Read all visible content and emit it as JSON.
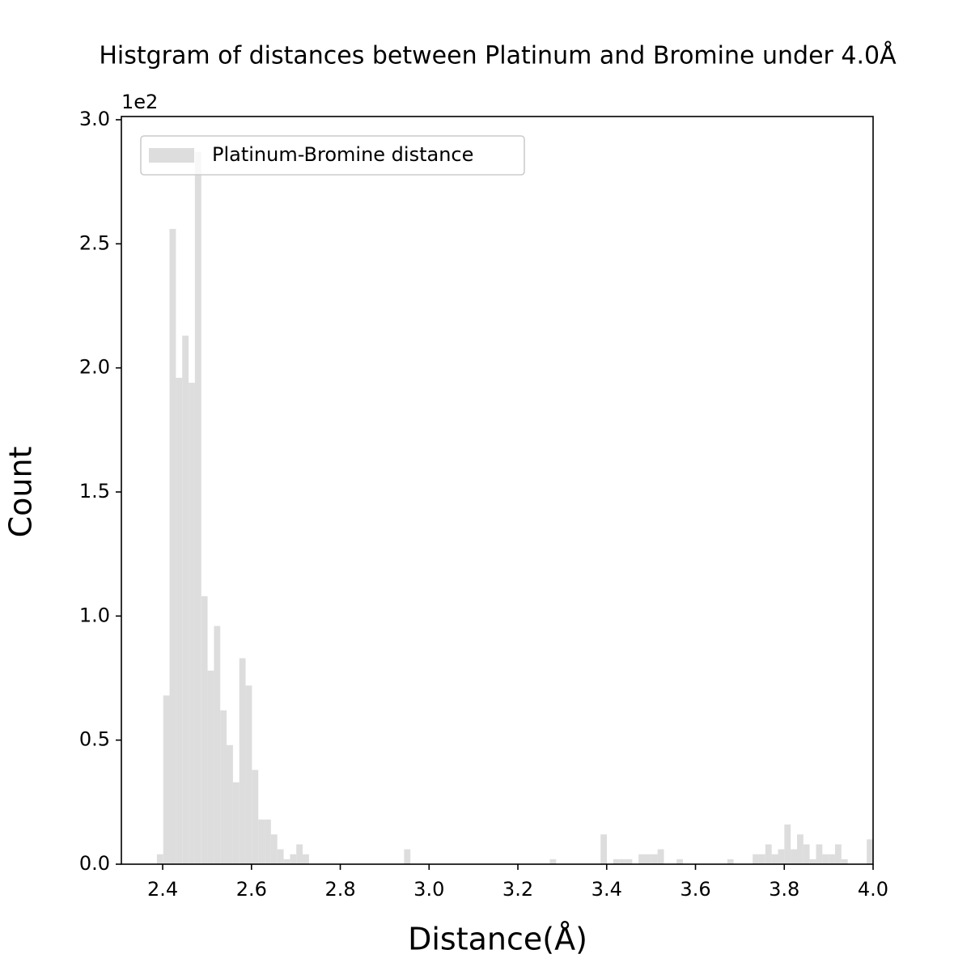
{
  "chart_data": {
    "type": "histogram",
    "title": "Histgram of distances between Platinum and Bromine under 4.0Å",
    "x_label": "Distance(Å)",
    "y_label": "Count",
    "y_offset_label": "1e2",
    "bins": [
      2.387,
      2.4013,
      2.4155,
      2.4298,
      2.4441,
      2.4584,
      2.4726,
      2.4869,
      2.5012,
      2.5155,
      2.5297,
      2.544,
      2.5583,
      2.5726,
      2.5868,
      2.6011,
      2.6154,
      2.6297,
      2.6439,
      2.6582,
      2.6725,
      2.6868,
      2.701,
      2.7153,
      2.7296,
      2.7439,
      2.7581,
      2.7724,
      2.7867,
      2.8009,
      2.8152,
      2.8295,
      2.8438,
      2.858,
      2.8723,
      2.8866,
      2.9009,
      2.9151,
      2.9294,
      2.9437,
      2.958,
      2.9722,
      2.9865,
      3.0008,
      3.0151,
      3.0293,
      3.0436,
      3.0579,
      3.0722,
      3.0864,
      3.1007,
      3.115,
      3.1292,
      3.1435,
      3.1578,
      3.1721,
      3.1863,
      3.2006,
      3.2149,
      3.2292,
      3.2434,
      3.2577,
      3.272,
      3.2863,
      3.3005,
      3.3148,
      3.3291,
      3.3434,
      3.3576,
      3.3719,
      3.3862,
      3.4005,
      3.4147,
      3.429,
      3.4433,
      3.4576,
      3.4718,
      3.4861,
      3.5004,
      3.5146,
      3.5289,
      3.5432,
      3.5575,
      3.5717,
      3.586,
      3.6003,
      3.6146,
      3.6288,
      3.6431,
      3.6574,
      3.6717,
      3.6859,
      3.7002,
      3.7145,
      3.7288,
      3.743,
      3.7573,
      3.7716,
      3.7859,
      3.8001,
      3.8144,
      3.8287,
      3.843,
      3.8572,
      3.8715,
      3.8858,
      3.9001,
      3.9143,
      3.9286,
      3.9429,
      3.9571,
      3.9714,
      3.9857,
      4.0
    ],
    "series": [
      {
        "name": "Platinum-Bromine distance",
        "color": "#dddddd",
        "values": [
          4,
          68,
          256,
          196,
          213,
          194,
          287,
          108,
          78,
          96,
          62,
          48,
          33,
          83,
          72,
          38,
          18,
          18,
          12,
          6,
          2,
          4,
          8,
          4,
          0,
          0,
          0,
          0,
          0,
          0,
          0,
          0,
          0,
          0,
          0,
          0,
          0,
          0,
          0,
          6,
          0,
          0,
          0,
          0,
          0,
          0,
          0,
          0,
          0,
          0,
          0,
          0,
          0,
          0,
          0,
          0,
          0,
          0,
          0,
          0,
          0,
          0,
          2,
          0,
          0,
          0,
          0,
          0,
          0,
          0,
          12,
          0,
          2,
          2,
          2,
          0,
          4,
          4,
          4,
          6,
          0,
          0,
          2,
          0,
          0,
          0,
          0,
          0,
          0,
          0,
          2,
          0,
          0,
          0,
          4,
          4,
          8,
          4,
          6,
          16,
          6,
          12,
          8,
          2,
          8,
          4,
          4,
          8,
          2,
          0,
          0,
          0,
          10
        ]
      }
    ],
    "xlim": [
      2.307,
      4.0
    ],
    "xticks": [
      2.4,
      2.6,
      2.8,
      {
        "value": 3,
        "label": "3.0"
      },
      3.2,
      3.4,
      3.6,
      3.8,
      {
        "value": 4,
        "label": "4.0"
      }
    ],
    "ylim": [
      0,
      301.3
    ],
    "yticks": [
      {
        "value": 0,
        "label": "0.0"
      },
      {
        "value": 50,
        "label": "0.5"
      },
      {
        "value": 100,
        "label": "1.0"
      },
      {
        "value": 150,
        "label": "1.5"
      },
      {
        "value": 200,
        "label": "2.0"
      },
      {
        "value": 250,
        "label": "2.5"
      },
      {
        "value": 300,
        "label": "3.0"
      }
    ],
    "legend": "upper left",
    "grid": false
  }
}
